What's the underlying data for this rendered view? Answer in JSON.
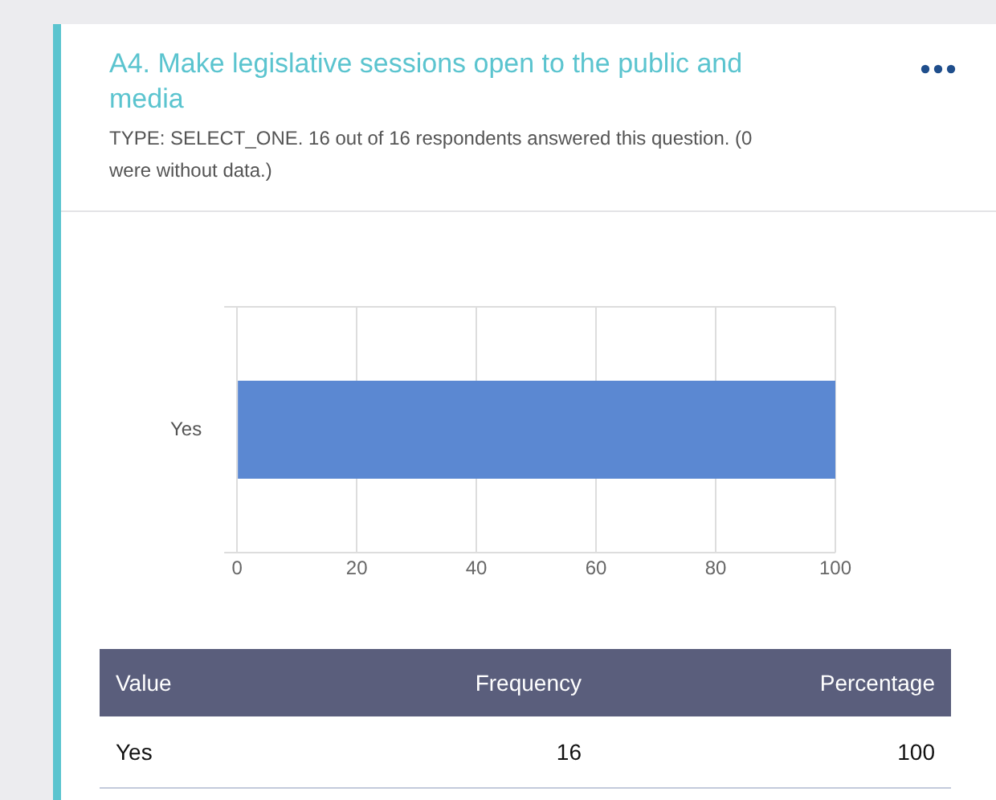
{
  "chart_data": {
    "type": "bar",
    "orientation": "horizontal",
    "title": "A4. Make legislative sessions open to the public and media",
    "subtitle": "TYPE: SELECT_ONE. 16 out of 16 respondents answered this question. (0 were without data.)",
    "categories": [
      "Yes"
    ],
    "values": [
      100
    ],
    "color": "#5b88d2",
    "xlim": [
      0,
      100
    ],
    "xticks": [
      0,
      20,
      40,
      60,
      80,
      100
    ],
    "grid": true,
    "legend": false,
    "annotations": [
      "Value",
      "Frequency",
      "Percentage",
      "16",
      "100"
    ]
  }
}
